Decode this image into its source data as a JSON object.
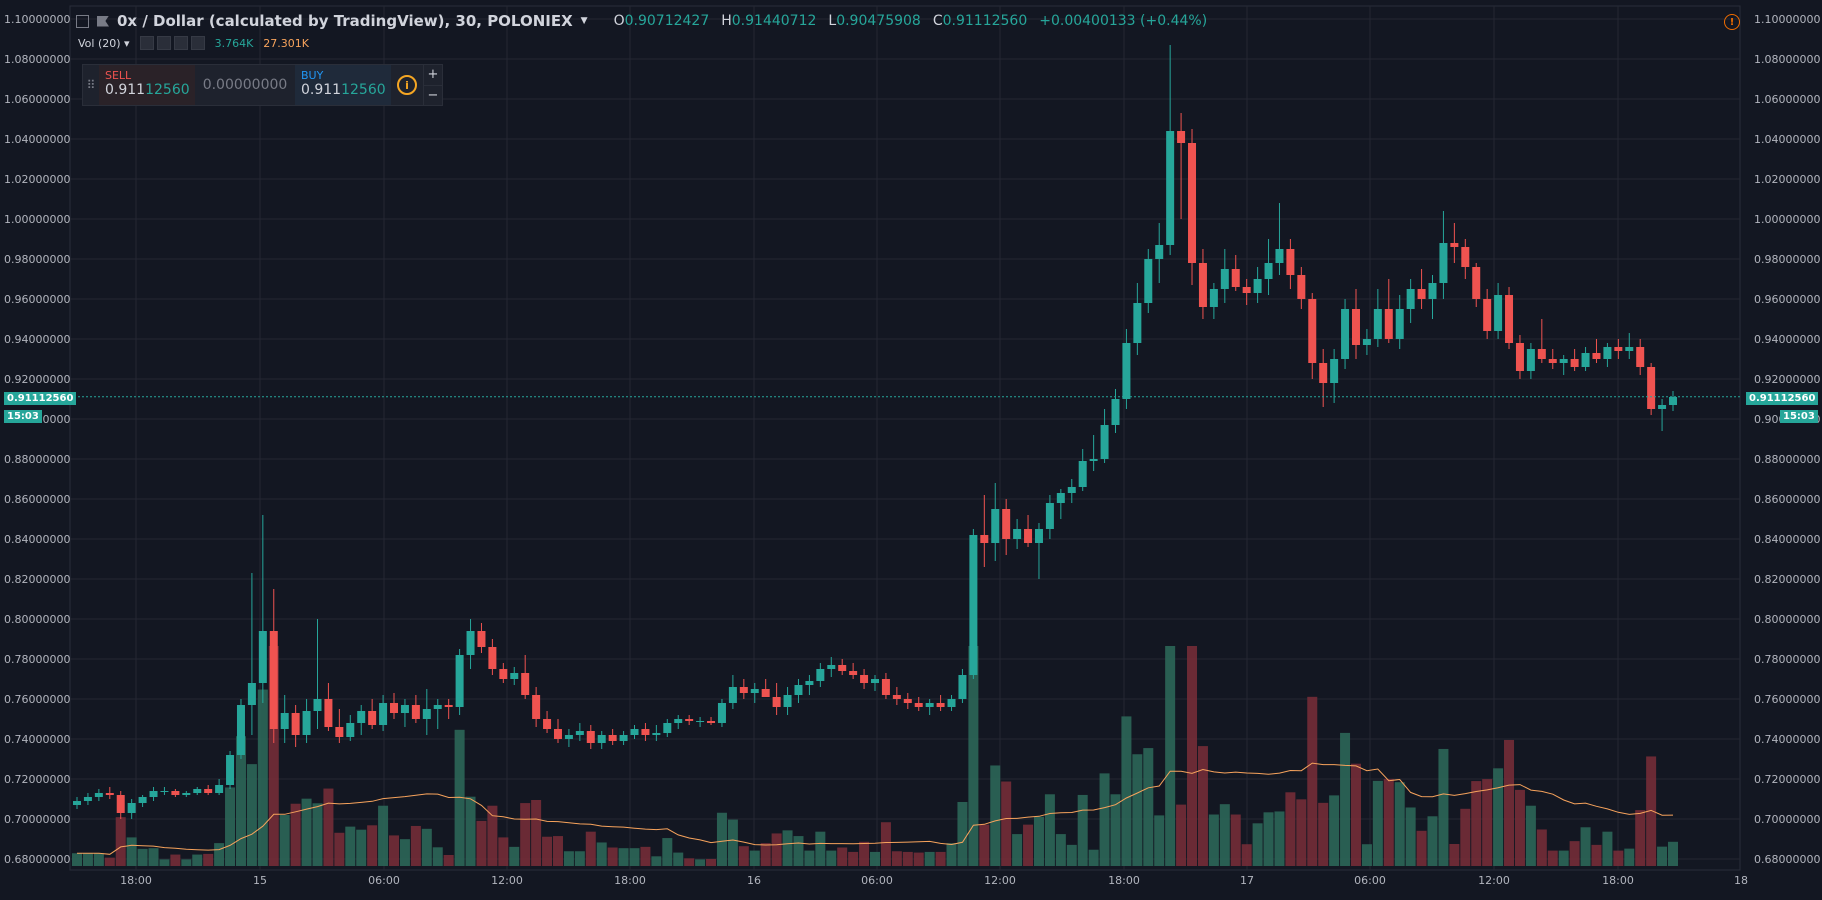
{
  "header": {
    "symbol": "0x / Dollar (calculated by TradingView), 30, POLONIEX",
    "dropdown_icon": "caret-down-icon",
    "o_label": "O",
    "o_value": "0.90712427",
    "h_label": "H",
    "h_value": "0.91440712",
    "l_label": "L",
    "l_value": "0.90475908",
    "c_label": "C",
    "c_value": "0.91112560",
    "change": "+0.00400133 (+0.44%)"
  },
  "volume_indicator": {
    "label": "Vol (20)",
    "vol_value": "3.764K",
    "ma_value": "27.301K"
  },
  "trade_panel": {
    "sell_label": "SELL",
    "sell_price_main": "0.911",
    "sell_price_tail": "12560",
    "spread": "0.00000000",
    "buy_label": "BUY",
    "buy_price_main": "0.911",
    "buy_price_tail": "12560",
    "plus": "+",
    "minus": "−"
  },
  "last_price": {
    "value": "0.91112560",
    "countdown": "15:03"
  },
  "colors": {
    "up": "#26a69a",
    "down": "#ef5350",
    "ma": "#f7a35c",
    "grid": "#242733",
    "bg": "#131722"
  },
  "chart_data": {
    "type": "candlestick",
    "title": "0x / Dollar (calculated by TradingView), 30, POLONIEX",
    "ylim": [
      0.678,
      1.105
    ],
    "y_ticks": [
      "0.68000000",
      "0.70000000",
      "0.72000000",
      "0.74000000",
      "0.76000000",
      "0.78000000",
      "0.80000000",
      "0.82000000",
      "0.84000000",
      "0.86000000",
      "0.88000000",
      "0.90000000",
      "0.92000000",
      "0.94000000",
      "0.96000000",
      "0.98000000",
      "1.00000000",
      "1.02000000",
      "1.04000000",
      "1.06000000",
      "1.08000000",
      "1.10000000"
    ],
    "x_ticks": [
      "18:00",
      "15",
      "06:00",
      "12:00",
      "18:00",
      "16",
      "06:00",
      "12:00",
      "18:00",
      "17",
      "06:00",
      "12:00",
      "18:00",
      "18"
    ],
    "grid": true,
    "candles": [
      [
        0.707,
        0.711,
        0.705,
        0.709
      ],
      [
        0.709,
        0.713,
        0.707,
        0.711
      ],
      [
        0.711,
        0.715,
        0.709,
        0.713
      ],
      [
        0.713,
        0.716,
        0.71,
        0.712
      ],
      [
        0.712,
        0.714,
        0.7,
        0.703
      ],
      [
        0.703,
        0.71,
        0.7,
        0.708
      ],
      [
        0.708,
        0.712,
        0.706,
        0.711
      ],
      [
        0.711,
        0.716,
        0.709,
        0.714
      ],
      [
        0.714,
        0.716,
        0.712,
        0.714
      ],
      [
        0.714,
        0.715,
        0.711,
        0.712
      ],
      [
        0.712,
        0.714,
        0.711,
        0.713
      ],
      [
        0.713,
        0.716,
        0.712,
        0.715
      ],
      [
        0.715,
        0.717,
        0.712,
        0.713
      ],
      [
        0.713,
        0.72,
        0.712,
        0.717
      ],
      [
        0.717,
        0.734,
        0.715,
        0.732
      ],
      [
        0.732,
        0.76,
        0.73,
        0.757
      ],
      [
        0.757,
        0.823,
        0.742,
        0.768
      ],
      [
        0.768,
        0.852,
        0.758,
        0.794
      ],
      [
        0.794,
        0.815,
        0.738,
        0.745
      ],
      [
        0.745,
        0.762,
        0.738,
        0.753
      ],
      [
        0.753,
        0.757,
        0.736,
        0.742
      ],
      [
        0.742,
        0.76,
        0.738,
        0.754
      ],
      [
        0.754,
        0.8,
        0.745,
        0.76
      ],
      [
        0.76,
        0.768,
        0.744,
        0.746
      ],
      [
        0.746,
        0.755,
        0.738,
        0.741
      ],
      [
        0.741,
        0.752,
        0.739,
        0.748
      ],
      [
        0.748,
        0.757,
        0.742,
        0.754
      ],
      [
        0.754,
        0.76,
        0.745,
        0.747
      ],
      [
        0.747,
        0.762,
        0.744,
        0.758
      ],
      [
        0.758,
        0.763,
        0.75,
        0.753
      ],
      [
        0.753,
        0.76,
        0.746,
        0.757
      ],
      [
        0.757,
        0.762,
        0.748,
        0.75
      ],
      [
        0.75,
        0.765,
        0.742,
        0.755
      ],
      [
        0.755,
        0.76,
        0.745,
        0.757
      ],
      [
        0.757,
        0.76,
        0.75,
        0.756
      ],
      [
        0.756,
        0.785,
        0.752,
        0.782
      ],
      [
        0.782,
        0.8,
        0.775,
        0.794
      ],
      [
        0.794,
        0.798,
        0.783,
        0.786
      ],
      [
        0.786,
        0.79,
        0.772,
        0.775
      ],
      [
        0.775,
        0.778,
        0.768,
        0.77
      ],
      [
        0.77,
        0.776,
        0.767,
        0.773
      ],
      [
        0.773,
        0.782,
        0.76,
        0.762
      ],
      [
        0.762,
        0.766,
        0.746,
        0.75
      ],
      [
        0.75,
        0.754,
        0.743,
        0.745
      ],
      [
        0.745,
        0.75,
        0.738,
        0.74
      ],
      [
        0.74,
        0.745,
        0.736,
        0.742
      ],
      [
        0.742,
        0.748,
        0.739,
        0.744
      ],
      [
        0.744,
        0.747,
        0.735,
        0.738
      ],
      [
        0.738,
        0.744,
        0.735,
        0.742
      ],
      [
        0.742,
        0.745,
        0.737,
        0.739
      ],
      [
        0.739,
        0.744,
        0.737,
        0.742
      ],
      [
        0.742,
        0.747,
        0.74,
        0.745
      ],
      [
        0.745,
        0.748,
        0.739,
        0.742
      ],
      [
        0.742,
        0.747,
        0.739,
        0.743
      ],
      [
        0.743,
        0.75,
        0.741,
        0.748
      ],
      [
        0.748,
        0.752,
        0.745,
        0.75
      ],
      [
        0.75,
        0.752,
        0.747,
        0.749
      ],
      [
        0.749,
        0.751,
        0.746,
        0.749
      ],
      [
        0.749,
        0.751,
        0.747,
        0.748
      ],
      [
        0.748,
        0.76,
        0.746,
        0.758
      ],
      [
        0.758,
        0.772,
        0.755,
        0.766
      ],
      [
        0.766,
        0.77,
        0.76,
        0.763
      ],
      [
        0.763,
        0.768,
        0.758,
        0.765
      ],
      [
        0.765,
        0.77,
        0.762,
        0.761
      ],
      [
        0.761,
        0.768,
        0.752,
        0.756
      ],
      [
        0.756,
        0.766,
        0.752,
        0.762
      ],
      [
        0.762,
        0.77,
        0.758,
        0.767
      ],
      [
        0.767,
        0.772,
        0.762,
        0.769
      ],
      [
        0.769,
        0.778,
        0.766,
        0.775
      ],
      [
        0.775,
        0.781,
        0.771,
        0.777
      ],
      [
        0.777,
        0.78,
        0.772,
        0.774
      ],
      [
        0.774,
        0.778,
        0.77,
        0.772
      ],
      [
        0.772,
        0.775,
        0.765,
        0.768
      ],
      [
        0.768,
        0.772,
        0.764,
        0.77
      ],
      [
        0.77,
        0.773,
        0.76,
        0.762
      ],
      [
        0.762,
        0.766,
        0.757,
        0.76
      ],
      [
        0.76,
        0.763,
        0.755,
        0.758
      ],
      [
        0.758,
        0.761,
        0.754,
        0.756
      ],
      [
        0.756,
        0.76,
        0.752,
        0.758
      ],
      [
        0.758,
        0.762,
        0.754,
        0.756
      ],
      [
        0.756,
        0.762,
        0.754,
        0.76
      ],
      [
        0.76,
        0.775,
        0.758,
        0.772
      ],
      [
        0.772,
        0.845,
        0.77,
        0.842
      ],
      [
        0.842,
        0.862,
        0.826,
        0.838
      ],
      [
        0.838,
        0.868,
        0.829,
        0.855
      ],
      [
        0.855,
        0.86,
        0.832,
        0.84
      ],
      [
        0.84,
        0.85,
        0.835,
        0.845
      ],
      [
        0.845,
        0.852,
        0.836,
        0.838
      ],
      [
        0.838,
        0.848,
        0.82,
        0.845
      ],
      [
        0.845,
        0.862,
        0.84,
        0.858
      ],
      [
        0.858,
        0.865,
        0.85,
        0.863
      ],
      [
        0.863,
        0.87,
        0.858,
        0.866
      ],
      [
        0.866,
        0.885,
        0.864,
        0.879
      ],
      [
        0.879,
        0.892,
        0.874,
        0.88
      ],
      [
        0.88,
        0.905,
        0.878,
        0.897
      ],
      [
        0.897,
        0.915,
        0.893,
        0.91
      ],
      [
        0.91,
        0.945,
        0.905,
        0.938
      ],
      [
        0.938,
        0.968,
        0.932,
        0.958
      ],
      [
        0.958,
        0.985,
        0.953,
        0.98
      ],
      [
        0.98,
        0.998,
        0.968,
        0.987
      ],
      [
        0.987,
        1.087,
        0.982,
        1.044
      ],
      [
        1.044,
        1.053,
        1.0,
        1.038
      ],
      [
        1.038,
        1.045,
        0.967,
        0.978
      ],
      [
        0.978,
        0.985,
        0.95,
        0.956
      ],
      [
        0.956,
        0.968,
        0.95,
        0.965
      ],
      [
        0.965,
        0.985,
        0.958,
        0.975
      ],
      [
        0.975,
        0.982,
        0.964,
        0.966
      ],
      [
        0.966,
        0.97,
        0.957,
        0.963
      ],
      [
        0.963,
        0.976,
        0.958,
        0.97
      ],
      [
        0.97,
        0.99,
        0.962,
        0.978
      ],
      [
        0.978,
        1.008,
        0.972,
        0.985
      ],
      [
        0.985,
        0.99,
        0.965,
        0.972
      ],
      [
        0.972,
        0.976,
        0.955,
        0.96
      ],
      [
        0.96,
        0.963,
        0.92,
        0.928
      ],
      [
        0.928,
        0.935,
        0.906,
        0.918
      ],
      [
        0.918,
        0.935,
        0.908,
        0.93
      ],
      [
        0.93,
        0.96,
        0.925,
        0.955
      ],
      [
        0.955,
        0.965,
        0.93,
        0.937
      ],
      [
        0.937,
        0.945,
        0.932,
        0.94
      ],
      [
        0.94,
        0.965,
        0.936,
        0.955
      ],
      [
        0.955,
        0.97,
        0.938,
        0.94
      ],
      [
        0.94,
        0.962,
        0.935,
        0.955
      ],
      [
        0.955,
        0.97,
        0.948,
        0.965
      ],
      [
        0.965,
        0.975,
        0.955,
        0.96
      ],
      [
        0.96,
        0.972,
        0.95,
        0.968
      ],
      [
        0.968,
        1.004,
        0.96,
        0.988
      ],
      [
        0.988,
        0.998,
        0.978,
        0.986
      ],
      [
        0.986,
        0.99,
        0.97,
        0.976
      ],
      [
        0.976,
        0.978,
        0.956,
        0.96
      ],
      [
        0.96,
        0.965,
        0.94,
        0.944
      ],
      [
        0.944,
        0.968,
        0.94,
        0.962
      ],
      [
        0.962,
        0.966,
        0.935,
        0.938
      ],
      [
        0.938,
        0.942,
        0.92,
        0.924
      ],
      [
        0.924,
        0.938,
        0.92,
        0.935
      ],
      [
        0.935,
        0.95,
        0.928,
        0.93
      ],
      [
        0.93,
        0.935,
        0.925,
        0.928
      ],
      [
        0.928,
        0.932,
        0.922,
        0.93
      ],
      [
        0.93,
        0.935,
        0.924,
        0.926
      ],
      [
        0.926,
        0.936,
        0.924,
        0.933
      ],
      [
        0.933,
        0.94,
        0.928,
        0.93
      ],
      [
        0.93,
        0.938,
        0.926,
        0.936
      ],
      [
        0.936,
        0.94,
        0.93,
        0.934
      ],
      [
        0.934,
        0.943,
        0.93,
        0.936
      ],
      [
        0.936,
        0.94,
        0.922,
        0.926
      ],
      [
        0.926,
        0.928,
        0.902,
        0.905
      ],
      [
        0.905,
        0.91,
        0.894,
        0.907
      ],
      [
        0.907,
        0.914,
        0.904,
        0.911
      ]
    ],
    "volume_scale_max": 10
  }
}
